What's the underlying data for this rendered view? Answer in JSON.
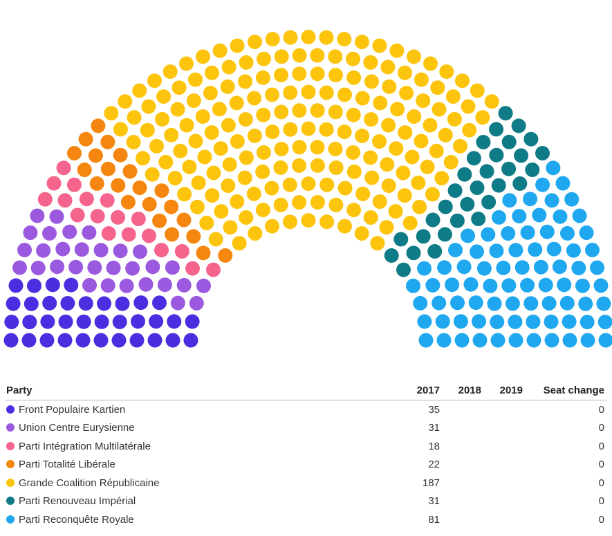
{
  "table": {
    "headers": {
      "party": "Party",
      "y2017": "2017",
      "y2018": "2018",
      "y2019": "2019",
      "seat_change": "Seat change"
    }
  },
  "chart_data": {
    "type": "parliament",
    "total_seats": 405,
    "parties": [
      {
        "name": "Front Populaire Kartien",
        "color": "#4a2fe0",
        "seats_2017": 35,
        "seats_2018": "",
        "seats_2019": "",
        "seat_change": 0
      },
      {
        "name": "Union Centre Eurysienne",
        "color": "#9b59e0",
        "seats_2017": 31,
        "seats_2018": "",
        "seats_2019": "",
        "seat_change": 0
      },
      {
        "name": "Parti Intégration Multilatérale",
        "color": "#f5648c",
        "seats_2017": 18,
        "seats_2018": "",
        "seats_2019": "",
        "seat_change": 0
      },
      {
        "name": "Parti Totalité Libérale",
        "color": "#f5860f",
        "seats_2017": 22,
        "seats_2018": "",
        "seats_2019": "",
        "seat_change": 0
      },
      {
        "name": "Grande Coalition Républicaine",
        "color": "#fcc40c",
        "seats_2017": 187,
        "seats_2018": "",
        "seats_2019": "",
        "seat_change": 0
      },
      {
        "name": "Parti Renouveau Impérial",
        "color": "#0f7b86",
        "seats_2017": 31,
        "seats_2018": "",
        "seats_2019": "",
        "seat_change": 0
      },
      {
        "name": "Parti Reconquête Royale",
        "color": "#1fa8ef",
        "seats_2017": 81,
        "seats_2018": "",
        "seats_2019": "",
        "seat_change": 0
      }
    ]
  }
}
